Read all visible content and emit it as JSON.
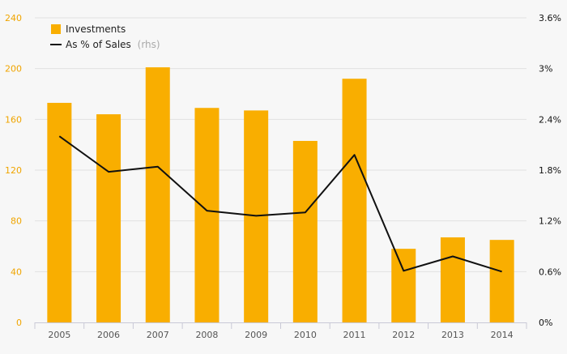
{
  "colors": {
    "background": "#f7f7f7",
    "bar": "#f9ae00",
    "line": "#111111",
    "grid": "#e2e2e2",
    "axis": "#c9c9d6",
    "left_tick_label": "#f0a500",
    "right_tick_label": "#111111",
    "x_tick_label": "#555555",
    "legend_suffix": "#aaaaaa"
  },
  "legend": {
    "investments": "Investments",
    "ratio": "As % of Sales",
    "ratio_suffix": "(rhs)"
  },
  "chart_data": {
    "type": "bar",
    "categories": [
      "2005",
      "2006",
      "2007",
      "2008",
      "2009",
      "2010",
      "2011",
      "2012",
      "2013",
      "2014"
    ],
    "series": [
      {
        "name": "Investments",
        "type": "bar",
        "axis": "left",
        "values": [
          173,
          164,
          201,
          169,
          167,
          143,
          192,
          58,
          67,
          65
        ]
      },
      {
        "name": "As % of Sales",
        "type": "line",
        "axis": "right",
        "values": [
          2.2,
          1.78,
          1.84,
          1.32,
          1.26,
          1.3,
          1.98,
          0.61,
          0.78,
          0.6
        ]
      }
    ],
    "xlabel": "",
    "ylabel": "",
    "y_left": {
      "lim": [
        0,
        240
      ],
      "ticks": [
        0,
        40,
        80,
        120,
        160,
        200,
        240
      ],
      "tick_labels": [
        "0",
        "40",
        "80",
        "120",
        "160",
        "200",
        "240"
      ]
    },
    "y_right": {
      "lim": [
        0,
        3.6
      ],
      "ticks": [
        0,
        0.6,
        1.2,
        1.8,
        2.4,
        3.0,
        3.6
      ],
      "tick_labels": [
        "0%",
        "0.6%",
        "1.2%",
        "1.8%",
        "2.4%",
        "3%",
        "3.6%"
      ]
    },
    "grid": true,
    "legend_position": "top-left"
  }
}
